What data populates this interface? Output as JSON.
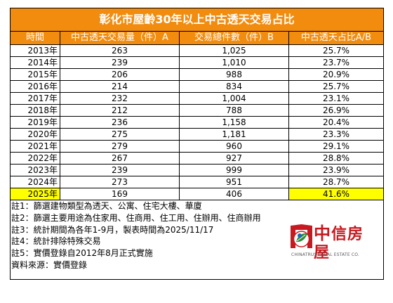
{
  "title": "彰化市屋齡30年以上中古透天交易占比",
  "headers": [
    "時間",
    "中古透天交易量（件）A",
    "交易總件數（件）B",
    "中古透天占比A/B"
  ],
  "rows": [
    {
      "year": "2013年",
      "a": "263",
      "b": "1,025",
      "ratio": "25.7%"
    },
    {
      "year": "2014年",
      "a": "239",
      "b": "1,010",
      "ratio": "23.7%"
    },
    {
      "year": "2015年",
      "a": "206",
      "b": "988",
      "ratio": "20.9%"
    },
    {
      "year": "2016年",
      "a": "214",
      "b": "834",
      "ratio": "25.7%"
    },
    {
      "year": "2017年",
      "a": "232",
      "b": "1,004",
      "ratio": "23.1%"
    },
    {
      "year": "2018年",
      "a": "212",
      "b": "788",
      "ratio": "26.9%"
    },
    {
      "year": "2019年",
      "a": "236",
      "b": "1,158",
      "ratio": "20.4%"
    },
    {
      "year": "2020年",
      "a": "275",
      "b": "1,181",
      "ratio": "23.3%"
    },
    {
      "year": "2021年",
      "a": "279",
      "b": "960",
      "ratio": "29.1%"
    },
    {
      "year": "2022年",
      "a": "267",
      "b": "927",
      "ratio": "28.8%"
    },
    {
      "year": "2023年",
      "a": "239",
      "b": "999",
      "ratio": "23.9%"
    },
    {
      "year": "2024年",
      "a": "273",
      "b": "951",
      "ratio": "28.7%"
    },
    {
      "year": "2025年",
      "a": "169",
      "b": "406",
      "ratio": "41.6%",
      "highlight": true
    }
  ],
  "notes": [
    "註1：篩選建物類型為透天、公寓、住宅大樓、華廈",
    "註2：篩選主要用途為住家用、住商用、住工用、住辦用、住商辦用",
    "註3：統計期間為各年1-9月，製表時間為2025/11/17",
    "註4：統計排除特殊交易",
    "註5：實價登錄自2012年8月正式實施",
    "資料來源：實價登錄"
  ],
  "logo": {
    "name_first": "中",
    "name_rest": "信房屋",
    "subtitle": "CHINATRUST REAL ESTATE CO.",
    "icon": "house-leaf-logo-icon"
  },
  "colors": {
    "header_bg": "#f28c0f",
    "highlight": "#ffff00",
    "brand_red": "#c7191f"
  }
}
